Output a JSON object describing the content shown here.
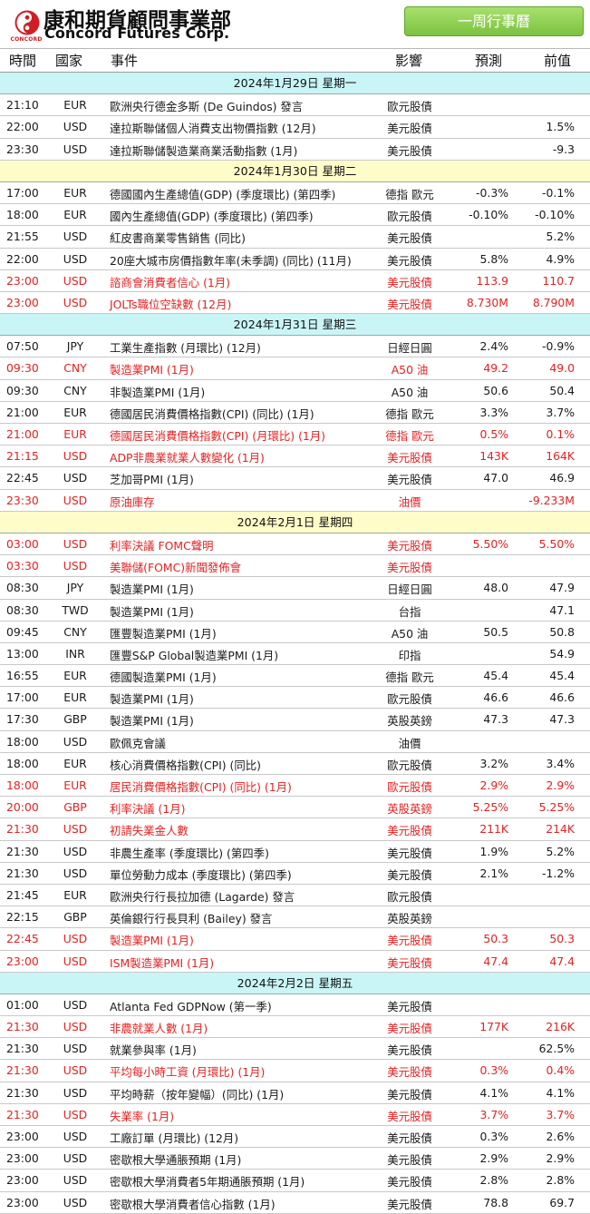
{
  "header": {
    "company_cn": "康和期貨顧問事業部",
    "company_en": "Concord Futures Corp.",
    "logo_caption": "CONCORD",
    "week_title": "一周行事曆",
    "brand_color": "#d01e24",
    "accent_color": "#7cc23f"
  },
  "columns": {
    "time": "時間",
    "country": "國家",
    "event": "事件",
    "impact": "影響",
    "forecast": "預測",
    "previous": "前值"
  },
  "colors": {
    "highlight_text": "#e32222",
    "day_bar_cyan": "#c9f5f6",
    "day_bar_yellow": "#fefcc8"
  },
  "days": [
    {
      "label": "2024年1月29日   星期一",
      "rows": [
        {
          "time": "21:10",
          "cur": "EUR",
          "event": "歐洲央行德金多斯 (De Guindos) 發言",
          "impact": "歐元股債",
          "fore": "",
          "prev": "",
          "red": false
        },
        {
          "time": "22:00",
          "cur": "USD",
          "event": "達拉斯聯儲個人消費支出物價指數 (12月)",
          "impact": "美元股債",
          "fore": "",
          "prev": "1.5%",
          "red": false
        },
        {
          "time": "23:30",
          "cur": "USD",
          "event": "達拉斯聯儲製造業商業活動指數 (1月)",
          "impact": "美元股債",
          "fore": "",
          "prev": "-9.3",
          "red": false
        }
      ]
    },
    {
      "label": "2024年1月30日   星期二",
      "rows": [
        {
          "time": "17:00",
          "cur": "EUR",
          "event": "德國國內生產總值(GDP) (季度環比) (第四季)",
          "impact": "德指  歐元",
          "fore": "-0.3%",
          "prev": "-0.1%",
          "red": false
        },
        {
          "time": "18:00",
          "cur": "EUR",
          "event": "國內生產總值(GDP) (季度環比) (第四季)",
          "impact": "歐元股債",
          "fore": "-0.10%",
          "prev": "-0.10%",
          "red": false
        },
        {
          "time": "21:55",
          "cur": "USD",
          "event": "紅皮書商業零售銷售 (同比)",
          "impact": "美元股債",
          "fore": "",
          "prev": "5.2%",
          "red": false
        },
        {
          "time": "22:00",
          "cur": "USD",
          "event": "20座大城市房價指數年率(未季調) (同比) (11月)",
          "impact": "美元股債",
          "fore": "5.8%",
          "prev": "4.9%",
          "red": false
        },
        {
          "time": "23:00",
          "cur": "USD",
          "event": "諮商會消費者信心 (1月)",
          "impact": "美元股債",
          "fore": "113.9",
          "prev": "110.7",
          "red": true
        },
        {
          "time": "23:00",
          "cur": "USD",
          "event": "JOLTs職位空缺數 (12月)",
          "impact": "美元股債",
          "fore": "8.730M",
          "prev": "8.790M",
          "red": true
        }
      ]
    },
    {
      "label": "2024年1月31日   星期三",
      "rows": [
        {
          "time": "07:50",
          "cur": "JPY",
          "event": "工業生產指數 (月環比) (12月)",
          "impact": "日經日圓",
          "fore": "2.4%",
          "prev": "-0.9%",
          "red": false
        },
        {
          "time": "09:30",
          "cur": "CNY",
          "event": "製造業PMI (1月)",
          "impact": "A50 油",
          "fore": "49.2",
          "prev": "49.0",
          "red": true
        },
        {
          "time": "09:30",
          "cur": "CNY",
          "event": "非製造業PMI (1月)",
          "impact": "A50 油",
          "fore": "50.6",
          "prev": "50.4",
          "red": false
        },
        {
          "time": "21:00",
          "cur": "EUR",
          "event": "德國居民消費價格指數(CPI) (同比) (1月)",
          "impact": "德指  歐元",
          "fore": "3.3%",
          "prev": "3.7%",
          "red": false
        },
        {
          "time": "21:00",
          "cur": "EUR",
          "event": "德國居民消費價格指數(CPI) (月環比) (1月)",
          "impact": "德指  歐元",
          "fore": "0.5%",
          "prev": "0.1%",
          "red": true
        },
        {
          "time": "21:15",
          "cur": "USD",
          "event": "ADP非農業就業人數變化 (1月)",
          "impact": "美元股債",
          "fore": "143K",
          "prev": "164K",
          "red": true
        },
        {
          "time": "22:45",
          "cur": "USD",
          "event": "芝加哥PMI (1月)",
          "impact": "美元股債",
          "fore": "47.0",
          "prev": "46.9",
          "red": false
        },
        {
          "time": "23:30",
          "cur": "USD",
          "event": "原油庫存",
          "impact": "油價",
          "fore": "",
          "prev": "-9.233M",
          "red": true
        }
      ]
    },
    {
      "label": "2024年2月1日   星期四",
      "rows": [
        {
          "time": "03:00",
          "cur": "USD",
          "event": "利率決議   FOMC聲明",
          "impact": "美元股債",
          "fore": "5.50%",
          "prev": "5.50%",
          "red": true
        },
        {
          "time": "03:30",
          "cur": "USD",
          "event": "美聯儲(FOMC)新聞發佈會",
          "impact": "美元股債",
          "fore": "",
          "prev": "",
          "red": true
        },
        {
          "time": "08:30",
          "cur": "JPY",
          "event": "製造業PMI (1月)",
          "impact": "日經日圓",
          "fore": "48.0",
          "prev": "47.9",
          "red": false
        },
        {
          "time": "08:30",
          "cur": "TWD",
          "event": "製造業PMI (1月)",
          "impact": "台指",
          "fore": "",
          "prev": "47.1",
          "red": false
        },
        {
          "time": "09:45",
          "cur": "CNY",
          "event": "匯豐製造業PMI (1月)",
          "impact": "A50 油",
          "fore": "50.5",
          "prev": "50.8",
          "red": false
        },
        {
          "time": "13:00",
          "cur": "INR",
          "event": "匯豐S&P Global製造業PMI (1月)",
          "impact": "印指",
          "fore": "",
          "prev": "54.9",
          "red": false
        },
        {
          "time": "16:55",
          "cur": "EUR",
          "event": "德國製造業PMI (1月)",
          "impact": "德指  歐元",
          "fore": "45.4",
          "prev": "45.4",
          "red": false
        },
        {
          "time": "17:00",
          "cur": "EUR",
          "event": "製造業PMI (1月)",
          "impact": "歐元股債",
          "fore": "46.6",
          "prev": "46.6",
          "red": false
        },
        {
          "time": "17:30",
          "cur": "GBP",
          "event": "製造業PMI (1月)",
          "impact": "英股英鎊",
          "fore": "47.3",
          "prev": "47.3",
          "red": false
        },
        {
          "time": "18:00",
          "cur": "USD",
          "event": "歐佩克會議",
          "impact": "油價",
          "fore": "",
          "prev": "",
          "red": false
        },
        {
          "time": "18:00",
          "cur": "EUR",
          "event": "核心消費價格指數(CPI) (同比)",
          "impact": "歐元股債",
          "fore": "3.2%",
          "prev": "3.4%",
          "red": false
        },
        {
          "time": "18:00",
          "cur": "EUR",
          "event": "居民消費價格指數(CPI) (同比) (1月)",
          "impact": "歐元股債",
          "fore": "2.9%",
          "prev": "2.9%",
          "red": true
        },
        {
          "time": "20:00",
          "cur": "GBP",
          "event": "利率決議 (1月)",
          "impact": "英股英鎊",
          "fore": "5.25%",
          "prev": "5.25%",
          "red": true
        },
        {
          "time": "21:30",
          "cur": "USD",
          "event": "初請失業金人數",
          "impact": "美元股債",
          "fore": "211K",
          "prev": "214K",
          "red": true
        },
        {
          "time": "21:30",
          "cur": "USD",
          "event": "非農生產率 (季度環比) (第四季)",
          "impact": "美元股債",
          "fore": "1.9%",
          "prev": "5.2%",
          "red": false
        },
        {
          "time": "21:30",
          "cur": "USD",
          "event": "單位勞動力成本 (季度環比) (第四季)",
          "impact": "美元股債",
          "fore": "2.1%",
          "prev": "-1.2%",
          "red": false
        },
        {
          "time": "21:45",
          "cur": "EUR",
          "event": "歐洲央行行長拉加德 (Lagarde) 發言",
          "impact": "歐元股債",
          "fore": "",
          "prev": "",
          "red": false
        },
        {
          "time": "22:15",
          "cur": "GBP",
          "event": "英倫銀行行長貝利 (Bailey) 發言",
          "impact": "英股英鎊",
          "fore": "",
          "prev": "",
          "red": false
        },
        {
          "time": "22:45",
          "cur": "USD",
          "event": "製造業PMI (1月)",
          "impact": "美元股債",
          "fore": "50.3",
          "prev": "50.3",
          "red": true
        },
        {
          "time": "23:00",
          "cur": "USD",
          "event": "ISM製造業PMI (1月)",
          "impact": "美元股債",
          "fore": "47.4",
          "prev": "47.4",
          "red": true
        }
      ]
    },
    {
      "label": "2024年2月2日   星期五",
      "rows": [
        {
          "time": "01:00",
          "cur": "USD",
          "event": "Atlanta Fed GDPNow (第一季)",
          "impact": "美元股債",
          "fore": "",
          "prev": "",
          "red": false
        },
        {
          "time": "21:30",
          "cur": "USD",
          "event": "非農就業人數 (1月)",
          "impact": "美元股債",
          "fore": "177K",
          "prev": "216K",
          "red": true
        },
        {
          "time": "21:30",
          "cur": "USD",
          "event": "就業參與率 (1月)",
          "impact": "美元股債",
          "fore": "",
          "prev": "62.5%",
          "red": false
        },
        {
          "time": "21:30",
          "cur": "USD",
          "event": "平均每小時工資 (月環比) (1月)",
          "impact": "美元股債",
          "fore": "0.3%",
          "prev": "0.4%",
          "red": true
        },
        {
          "time": "21:30",
          "cur": "USD",
          "event": "平均時薪（按年變幅）(同比) (1月)",
          "impact": "美元股債",
          "fore": "4.1%",
          "prev": "4.1%",
          "red": false
        },
        {
          "time": "21:30",
          "cur": "USD",
          "event": "失業率 (1月)",
          "impact": "美元股債",
          "fore": "3.7%",
          "prev": "3.7%",
          "red": true
        },
        {
          "time": "23:00",
          "cur": "USD",
          "event": "工廠訂單 (月環比) (12月)",
          "impact": "美元股債",
          "fore": "0.3%",
          "prev": "2.6%",
          "red": false
        },
        {
          "time": "23:00",
          "cur": "USD",
          "event": "密歇根大學通脹預期 (1月)",
          "impact": "美元股債",
          "fore": "2.9%",
          "prev": "2.9%",
          "red": false
        },
        {
          "time": "23:00",
          "cur": "USD",
          "event": "密歇根大學消費者5年期通脹預期 (1月)",
          "impact": "美元股債",
          "fore": "2.8%",
          "prev": "2.8%",
          "red": false
        },
        {
          "time": "23:00",
          "cur": "USD",
          "event": "密歇根大學消費者信心指數 (1月)",
          "impact": "美元股債",
          "fore": "78.8",
          "prev": "69.7",
          "red": false
        }
      ]
    }
  ]
}
